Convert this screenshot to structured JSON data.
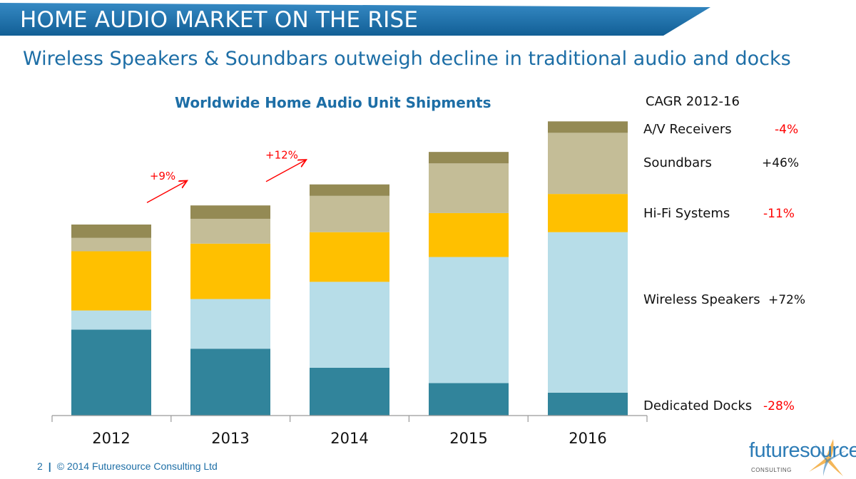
{
  "header": {
    "title": "HOME AUDIO MARKET ON THE RISE",
    "subtitle": "Wireless Speakers & Soundbars outweigh decline in traditional audio and docks"
  },
  "chart_data": {
    "type": "bar",
    "stacked": true,
    "title": "Worldwide Home Audio Unit Shipments",
    "xlabel": "",
    "ylabel": "",
    "categories": [
      "2012",
      "2013",
      "2014",
      "2015",
      "2016"
    ],
    "series": [
      {
        "name": "Dedicated Docks",
        "color": "#31849b",
        "values": [
          45,
          35,
          25,
          17,
          12
        ]
      },
      {
        "name": "Wireless Speakers",
        "color": "#b7dde8",
        "values": [
          10,
          26,
          45,
          66,
          84
        ]
      },
      {
        "name": "Hi-Fi Systems",
        "color": "#ffc000",
        "values": [
          31,
          29,
          26,
          23,
          20
        ]
      },
      {
        "name": "Soundbars",
        "color": "#c4bd97",
        "values": [
          7,
          13,
          19,
          26,
          32
        ]
      },
      {
        "name": "A/V Receivers",
        "color": "#948a54",
        "values": [
          7,
          7,
          6,
          6,
          6
        ]
      }
    ],
    "growth_annotations": [
      {
        "label": "+9%",
        "color": "#ff0000"
      },
      {
        "label": "+12%",
        "color": "#ff0000"
      }
    ],
    "grid": false,
    "legend": "right"
  },
  "cagr": {
    "heading": "CAGR 2012-16",
    "rows": [
      {
        "label": "A/V Receivers",
        "value": "-4%",
        "color": "#ff0000"
      },
      {
        "label": "Soundbars",
        "value": "+46%",
        "color": "#111111"
      },
      {
        "label": "Hi-Fi Systems",
        "value": "-11%",
        "color": "#ff0000"
      },
      {
        "label": "Wireless Speakers",
        "value": "+72%",
        "color": "#111111"
      },
      {
        "label": "Dedicated Docks",
        "value": "-28%",
        "color": "#ff0000"
      }
    ]
  },
  "footer": {
    "page": "2",
    "separator": "|",
    "copyright": "© 2014 Futuresource Consulting Ltd"
  },
  "logo": {
    "word": "futuresource",
    "sub": "CONSULTING"
  },
  "colors": {
    "banner": "#1d6ea6",
    "accent_text": "#1d6ea6"
  }
}
